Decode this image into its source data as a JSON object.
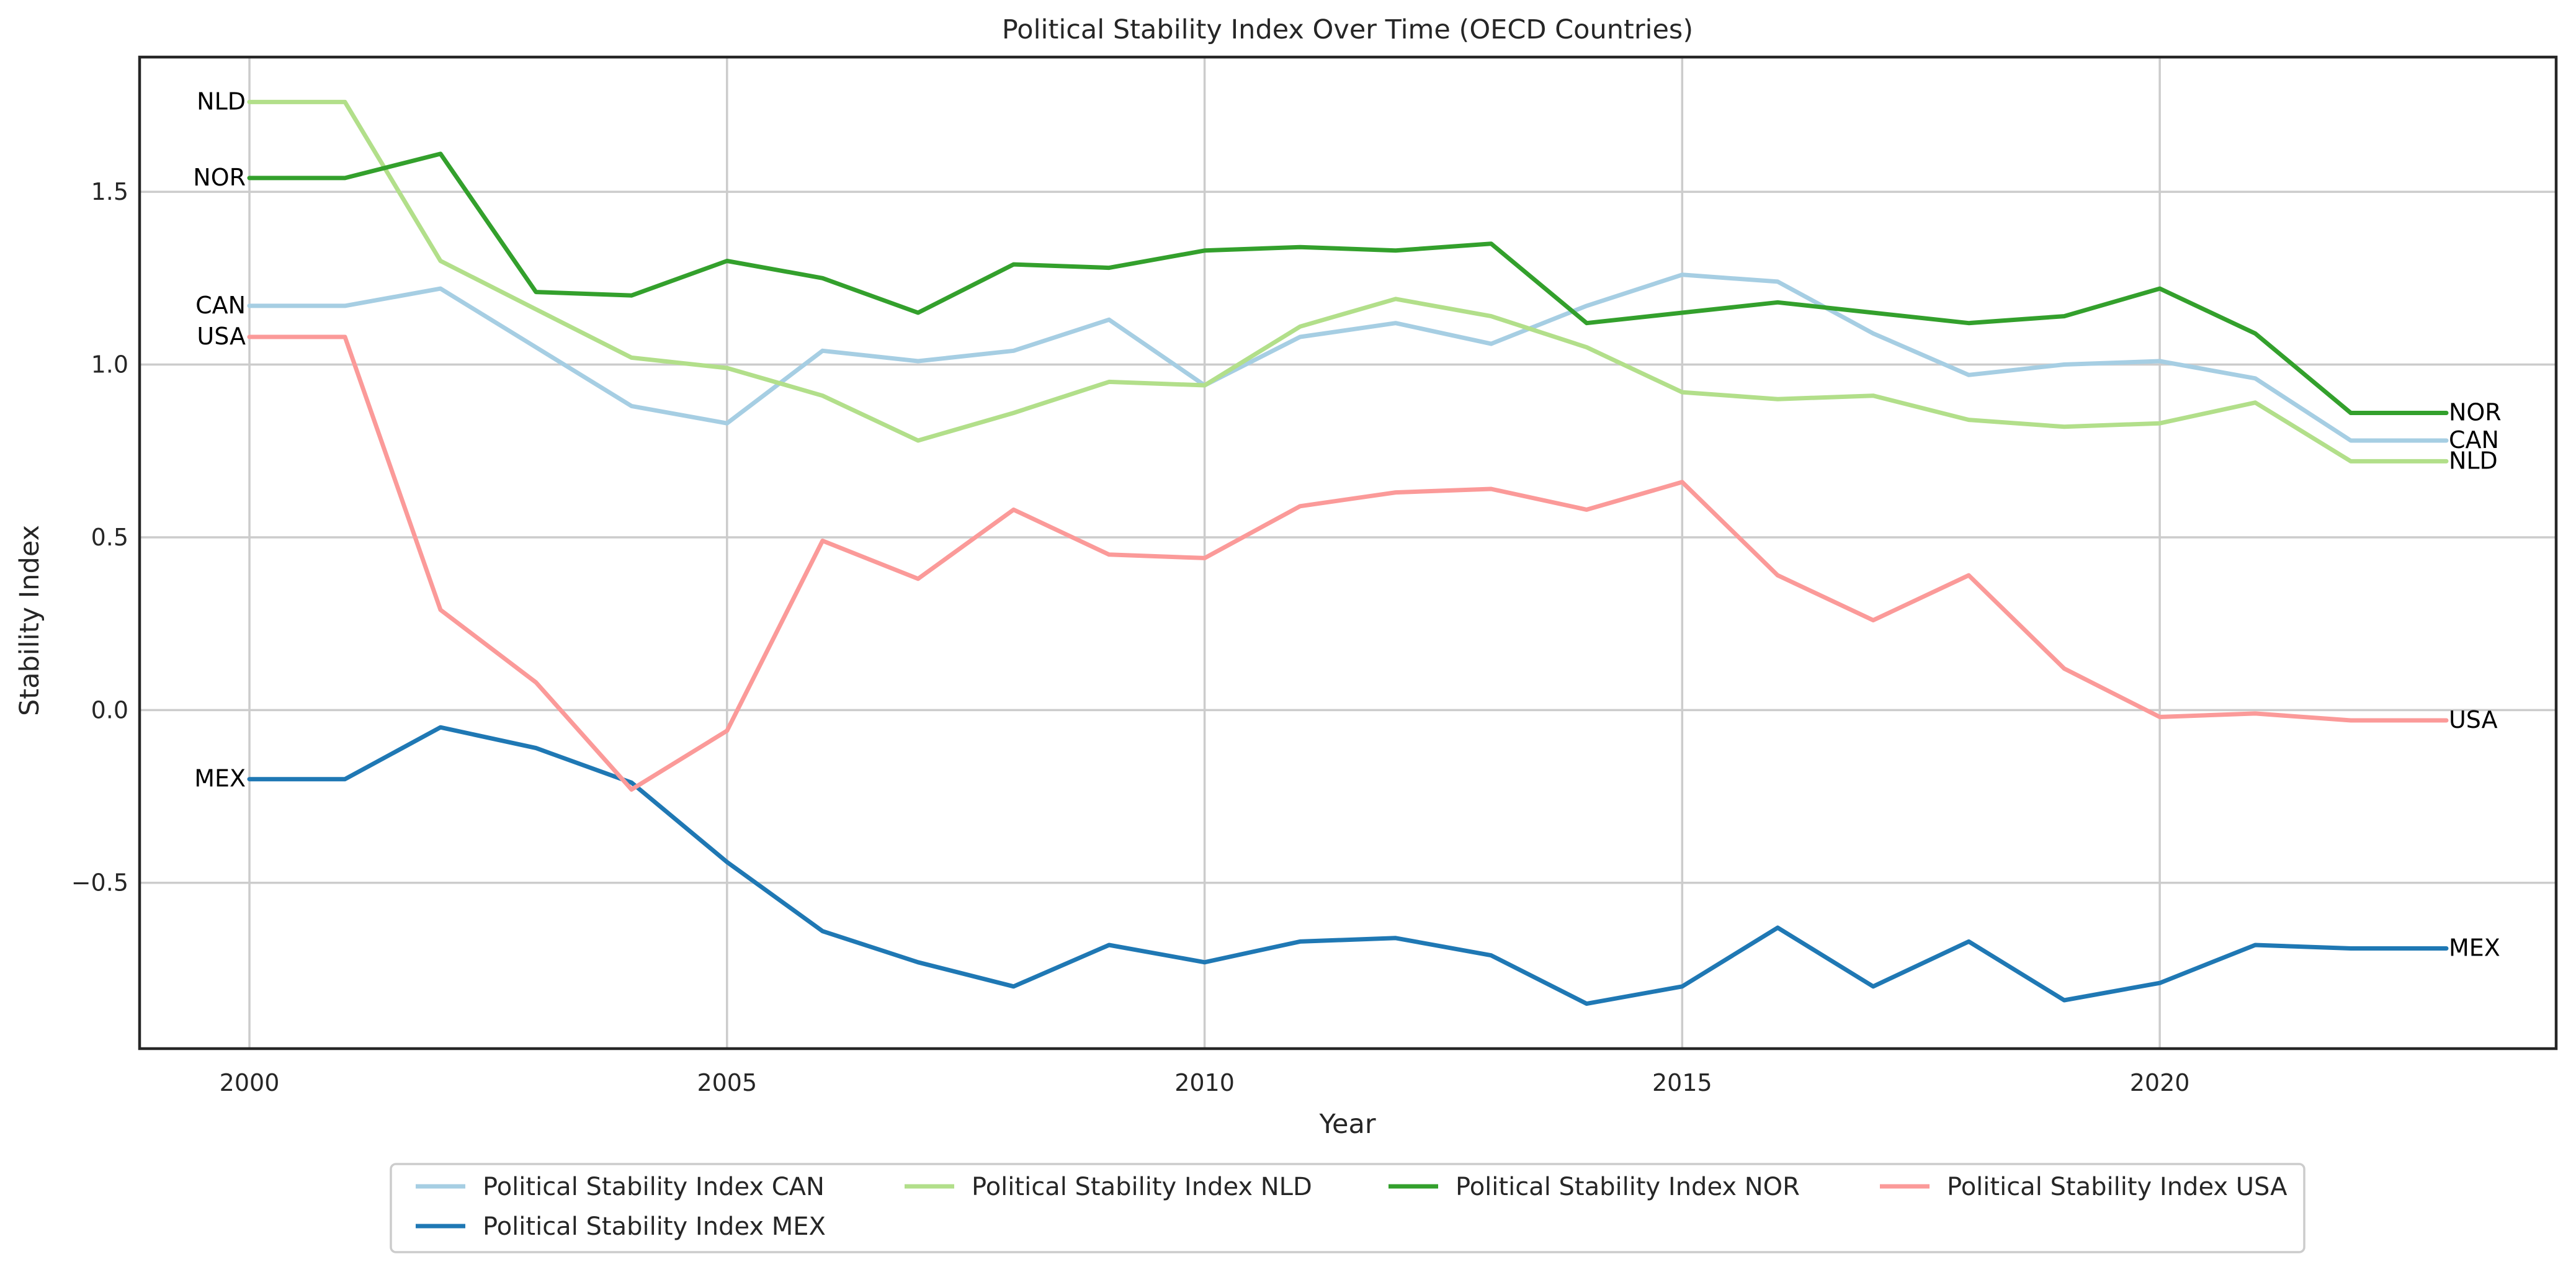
{
  "chart_data": {
    "type": "line",
    "title": "Political Stability Index Over Time (OECD Countries)",
    "xlabel": "Year",
    "ylabel": "Stability Index",
    "xlim": [
      1998.85,
      2024.15
    ],
    "ylim": [
      -0.98,
      1.89
    ],
    "x_ticks": [
      2000,
      2005,
      2010,
      2015,
      2020
    ],
    "y_ticks": [
      -0.5,
      0.0,
      0.5,
      1.0,
      1.5
    ],
    "y_tick_labels": [
      "−0.5",
      "0.0",
      "0.5",
      "1.0",
      "1.5"
    ],
    "grid": true,
    "legend": "bottom-center (outside plot)",
    "x": [
      2000,
      2001,
      2002,
      2003,
      2004,
      2005,
      2006,
      2007,
      2008,
      2009,
      2010,
      2011,
      2012,
      2013,
      2014,
      2015,
      2016,
      2017,
      2018,
      2019,
      2020,
      2021,
      2022,
      2023
    ],
    "series": [
      {
        "name": "Political Stability Index CAN",
        "short": "CAN",
        "color": "#a6cee3",
        "values": [
          1.17,
          1.17,
          1.22,
          1.05,
          0.88,
          0.83,
          1.04,
          1.01,
          1.04,
          1.13,
          0.94,
          1.08,
          1.12,
          1.06,
          1.17,
          1.26,
          1.24,
          1.09,
          0.97,
          1.0,
          1.01,
          0.96,
          0.78,
          0.78
        ]
      },
      {
        "name": "Political Stability Index MEX",
        "short": "MEX",
        "color": "#1f78b4",
        "values": [
          -0.2,
          -0.2,
          -0.05,
          -0.11,
          -0.21,
          -0.44,
          -0.64,
          -0.73,
          -0.8,
          -0.68,
          -0.73,
          -0.67,
          -0.66,
          -0.71,
          -0.85,
          -0.8,
          -0.63,
          -0.8,
          -0.67,
          -0.84,
          -0.79,
          -0.68,
          -0.69,
          -0.69
        ]
      },
      {
        "name": "Political Stability Index NLD",
        "short": "NLD",
        "color": "#b2df8a",
        "values": [
          1.76,
          1.76,
          1.3,
          1.16,
          1.02,
          0.99,
          0.91,
          0.78,
          0.86,
          0.95,
          0.94,
          1.11,
          1.19,
          1.14,
          1.05,
          0.92,
          0.9,
          0.91,
          0.84,
          0.82,
          0.83,
          0.89,
          0.72,
          0.72
        ]
      },
      {
        "name": "Political Stability Index NOR",
        "short": "NOR",
        "color": "#33a02c",
        "values": [
          1.54,
          1.54,
          1.61,
          1.21,
          1.2,
          1.3,
          1.25,
          1.15,
          1.29,
          1.28,
          1.33,
          1.34,
          1.33,
          1.35,
          1.12,
          1.15,
          1.18,
          1.15,
          1.12,
          1.14,
          1.22,
          1.09,
          0.86,
          0.86
        ]
      },
      {
        "name": "Political Stability Index USA",
        "short": "USA",
        "color": "#fb9a99",
        "values": [
          1.08,
          1.08,
          0.29,
          0.08,
          -0.23,
          -0.06,
          0.49,
          0.38,
          0.58,
          0.45,
          0.44,
          0.59,
          0.63,
          0.64,
          0.58,
          0.66,
          0.39,
          0.26,
          0.39,
          0.12,
          -0.02,
          -0.01,
          -0.03,
          -0.03
        ]
      }
    ],
    "legend_order": [
      0,
      2,
      3,
      4,
      1
    ]
  }
}
